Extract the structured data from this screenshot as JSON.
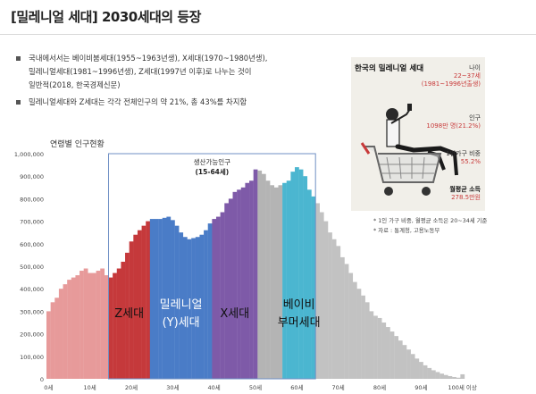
{
  "slide": {
    "title": "[밀레니얼 세대] 2030세대의 등장",
    "bullets": [
      {
        "lines": [
          "국내에서서는 베이비붐세대(1955~1963년생), X세대(1970~1980년생),",
          "밀레니얼세대(1981~1996년생), Z세대(1997년 이후)로 나누는 것이",
          "일반적(2018, 한국경제신문)"
        ]
      },
      {
        "lines": [
          "밀레니얼세대와 Z세대는 각각 전체인구의 약 21%, 총 43%를 차지함"
        ]
      }
    ],
    "infographic": {
      "title": "한국의 밀레니얼 세대",
      "stats": [
        {
          "label": "나이",
          "value": "22~37세",
          "sub": "(1981~1996년출생)"
        },
        {
          "label": "인구",
          "value": "1098만 명(21.2%)"
        },
        {
          "label": "1인가구 비중",
          "value": "55.2%"
        },
        {
          "label": "월평균 소득",
          "value": "278.5만원"
        }
      ]
    },
    "notes": [
      "*  1인 가구 비중, 월평균 소득은 20~34세 기준",
      "*  자료 : 통계청, 고용노동부"
    ]
  },
  "chart_data": {
    "type": "bar",
    "title": "연령별 인구현황",
    "x": [
      0,
      1,
      2,
      3,
      4,
      5,
      6,
      7,
      8,
      9,
      10,
      11,
      12,
      13,
      14,
      15,
      16,
      17,
      18,
      19,
      20,
      21,
      22,
      23,
      24,
      25,
      26,
      27,
      28,
      29,
      30,
      31,
      32,
      33,
      34,
      35,
      36,
      37,
      38,
      39,
      40,
      41,
      42,
      43,
      44,
      45,
      46,
      47,
      48,
      49,
      50,
      51,
      52,
      53,
      54,
      55,
      56,
      57,
      58,
      59,
      60,
      61,
      62,
      63,
      64,
      65,
      66,
      67,
      68,
      69,
      70,
      71,
      72,
      73,
      74,
      75,
      76,
      77,
      78,
      79,
      80,
      81,
      82,
      83,
      84,
      85,
      86,
      87,
      88,
      89,
      90,
      91,
      92,
      93,
      94,
      95,
      96,
      97,
      98,
      99,
      100
    ],
    "values": [
      300000,
      340000,
      360000,
      400000,
      420000,
      440000,
      450000,
      460000,
      480000,
      490000,
      470000,
      470000,
      480000,
      490000,
      460000,
      450000,
      470000,
      490000,
      520000,
      560000,
      610000,
      640000,
      660000,
      680000,
      700000,
      710000,
      710000,
      710000,
      715000,
      720000,
      705000,
      680000,
      650000,
      630000,
      620000,
      625000,
      630000,
      640000,
      660000,
      690000,
      710000,
      720000,
      740000,
      780000,
      800000,
      830000,
      840000,
      850000,
      870000,
      880000,
      930000,
      925000,
      910000,
      880000,
      860000,
      850000,
      860000,
      870000,
      880000,
      920000,
      940000,
      930000,
      900000,
      840000,
      810000,
      780000,
      740000,
      700000,
      650000,
      620000,
      590000,
      540000,
      510000,
      470000,
      430000,
      400000,
      370000,
      340000,
      300000,
      280000,
      270000,
      250000,
      230000,
      210000,
      190000,
      170000,
      150000,
      130000,
      110000,
      90000,
      75000,
      60000,
      48000,
      38000,
      30000,
      23000,
      17000,
      12000,
      8000,
      5000,
      20000
    ],
    "xlabel": "",
    "ylabel": "",
    "ylim": [
      0,
      1000000
    ],
    "y_ticks": [
      "0",
      "100,000",
      "200,000",
      "300,000",
      "400,000",
      "500,000",
      "600,000",
      "700,000",
      "800,000",
      "900,000",
      "1,000,000"
    ],
    "x_ticks": [
      "0세",
      "10세",
      "20세",
      "30세",
      "40세",
      "50세",
      "60세",
      "70세",
      "80세",
      "90세",
      "100세 이상"
    ],
    "x_tick_values": [
      0,
      10,
      20,
      30,
      40,
      50,
      60,
      70,
      80,
      90,
      100
    ],
    "grid": false,
    "segments": [
      {
        "from": 0,
        "to": 14,
        "color": "#e79a9a"
      },
      {
        "from": 15,
        "to": 24,
        "color": "#c5393b",
        "label_lines": [
          "Z세대"
        ],
        "label_color": "#111111"
      },
      {
        "from": 25,
        "to": 39,
        "color": "#4a7cc7",
        "label_lines": [
          "밀레니얼",
          "(Y)세대"
        ],
        "label_color": "#ffffff"
      },
      {
        "from": 40,
        "to": 50,
        "color": "#7e5aa8",
        "label_lines": [
          "X세대"
        ],
        "label_color": "#111111"
      },
      {
        "from": 51,
        "to": 56,
        "color": "#b4b4b4"
      },
      {
        "from": 57,
        "to": 64,
        "color": "#4bb6d0",
        "label_lines": [
          "베이비",
          "부머세대"
        ],
        "label_color": "#111111"
      },
      {
        "from": 65,
        "to": 100,
        "color": "#c2c2c2"
      }
    ],
    "working_age_box": {
      "from": 15,
      "to": 64,
      "label": "생산가능인구",
      "sublabel": "(15-64세)"
    }
  }
}
